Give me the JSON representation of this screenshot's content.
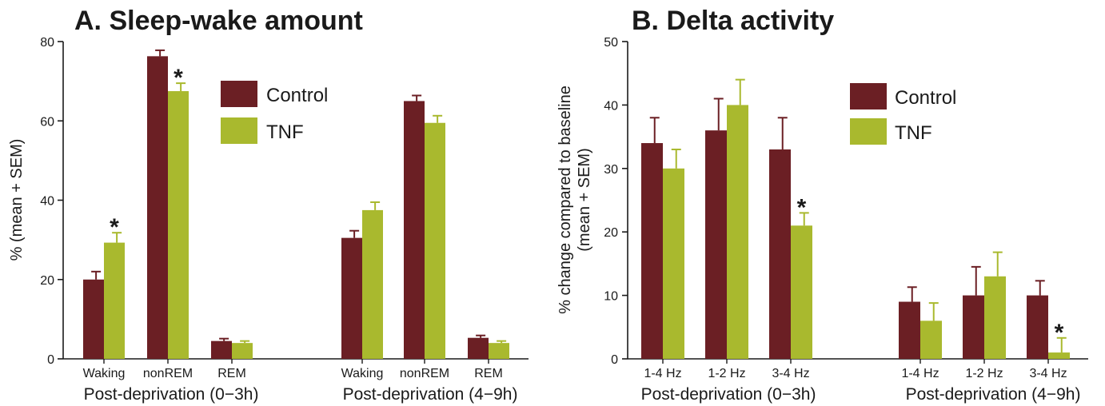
{
  "colors": {
    "control": "#6b1f24",
    "tnf": "#a9b92e",
    "axis": "#1a1a1a"
  },
  "chart_data": [
    {
      "type": "bar",
      "title": "A. Sleep-wake amount",
      "ylabel": "% (mean + SEM)",
      "ylim": [
        0,
        80
      ],
      "yticks": [
        "0",
        "20",
        "40",
        "60",
        "80"
      ],
      "legend": {
        "placement": "top-right",
        "entries": [
          "Control",
          "TNF"
        ]
      },
      "groups": [
        {
          "label": "Post-deprivation (0−3h)",
          "categories": [
            {
              "label": "Waking",
              "control": 20,
              "control_err": 2,
              "tnf": 29.3,
              "tnf_err": 2.5,
              "sig": "tnf"
            },
            {
              "label": "nonREM",
              "control": 76.3,
              "control_err": 1.5,
              "tnf": 67.5,
              "tnf_err": 2,
              "sig": "tnf"
            },
            {
              "label": "REM",
              "control": 4.5,
              "control_err": 0.6,
              "tnf": 4,
              "tnf_err": 0.5
            }
          ]
        },
        {
          "label": "Post-deprivation (4−9h)",
          "categories": [
            {
              "label": "Waking",
              "control": 30.5,
              "control_err": 1.8,
              "tnf": 37.5,
              "tnf_err": 2
            },
            {
              "label": "nonREM",
              "control": 65,
              "control_err": 1.4,
              "tnf": 59.5,
              "tnf_err": 1.8
            },
            {
              "label": "REM",
              "control": 5.3,
              "control_err": 0.6,
              "tnf": 4,
              "tnf_err": 0.5
            }
          ]
        }
      ],
      "series": [
        {
          "name": "Control"
        },
        {
          "name": "TNF"
        }
      ],
      "significance_marker": "*"
    },
    {
      "type": "bar",
      "title": "B. Delta activity",
      "ylabel_line1": "% change compared to baseline",
      "ylabel_line2": "(mean + SEM)",
      "ylim": [
        0,
        50
      ],
      "yticks": [
        "0",
        "10",
        "20",
        "30",
        "40",
        "50"
      ],
      "legend": {
        "placement": "top-right",
        "entries": [
          "Control",
          "TNF"
        ]
      },
      "groups": [
        {
          "label": "Post-deprivation (0−3h)",
          "categories": [
            {
              "label": "1-4 Hz",
              "control": 34,
              "control_err": 4,
              "tnf": 30,
              "tnf_err": 3
            },
            {
              "label": "1-2 Hz",
              "control": 36,
              "control_err": 5,
              "tnf": 40,
              "tnf_err": 4
            },
            {
              "label": "3-4 Hz",
              "control": 33,
              "control_err": 5,
              "tnf": 21,
              "tnf_err": 2,
              "sig": "tnf"
            }
          ]
        },
        {
          "label": "Post-deprivation (4−9h)",
          "categories": [
            {
              "label": "1-4 Hz",
              "control": 9,
              "control_err": 2.3,
              "tnf": 6,
              "tnf_err": 2.8
            },
            {
              "label": "1-2 Hz",
              "control": 10,
              "control_err": 4.5,
              "tnf": 13,
              "tnf_err": 3.8
            },
            {
              "label": "3-4 Hz",
              "control": 10,
              "control_err": 2.3,
              "tnf": 1,
              "tnf_err": 2.3,
              "sig": "tnf"
            }
          ]
        }
      ],
      "series": [
        {
          "name": "Control"
        },
        {
          "name": "TNF"
        }
      ],
      "significance_marker": "*"
    }
  ]
}
